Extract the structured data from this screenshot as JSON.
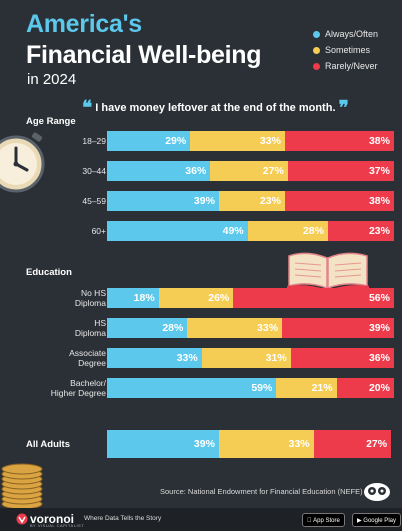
{
  "header": {
    "title_line1": "America's",
    "title_line2": "Financial Well-being",
    "title_line3": "in 2024"
  },
  "legend": [
    {
      "label": "Always/Often",
      "color": "#5bc8ec"
    },
    {
      "label": "Sometimes",
      "color": "#f5cd54"
    },
    {
      "label": "Rarely/Never",
      "color": "#ee3b4c"
    }
  ],
  "quote": {
    "open": "❝",
    "text": "I have money leftover at the end of the month.",
    "close": "❞"
  },
  "sections": {
    "age": "Age Range",
    "education": "Education"
  },
  "chart_data": {
    "type": "bar",
    "stacked": true,
    "orientation": "horizontal",
    "unit": "%",
    "groups": [
      {
        "name": "Age Range",
        "categories": [
          "18–29",
          "30–44",
          "45–59",
          "60+"
        ]
      },
      {
        "name": "Education",
        "categories": [
          "No HS Diploma",
          "HS Diploma",
          "Associate Degree",
          "Bachelor/ Higher Degree"
        ]
      },
      {
        "name": "",
        "categories": [
          "All Adults"
        ]
      }
    ],
    "categories": [
      "18–29",
      "30–44",
      "45–59",
      "60+",
      "No HS Diploma",
      "HS Diploma",
      "Associate Degree",
      "Bachelor/ Higher Degree",
      "All Adults"
    ],
    "series": [
      {
        "name": "Always/Often",
        "color": "#5bc8ec",
        "values": [
          29,
          36,
          39,
          49,
          18,
          28,
          33,
          59,
          39
        ]
      },
      {
        "name": "Sometimes",
        "color": "#f5cd54",
        "values": [
          33,
          27,
          23,
          28,
          26,
          33,
          31,
          21,
          33
        ]
      },
      {
        "name": "Rarely/Never",
        "color": "#ee3b4c",
        "values": [
          38,
          37,
          38,
          23,
          56,
          39,
          36,
          20,
          27
        ]
      }
    ],
    "xlim": [
      0,
      100
    ]
  },
  "source": "Source: National Endowment for Financial Education (NEFE)",
  "footer": {
    "brand": "voronoi",
    "brand_sub": "BY VISUAL CAPITALIST",
    "tagline": "Where Data Tells the Story",
    "app_store": "App Store",
    "google_play": "Google Play"
  }
}
